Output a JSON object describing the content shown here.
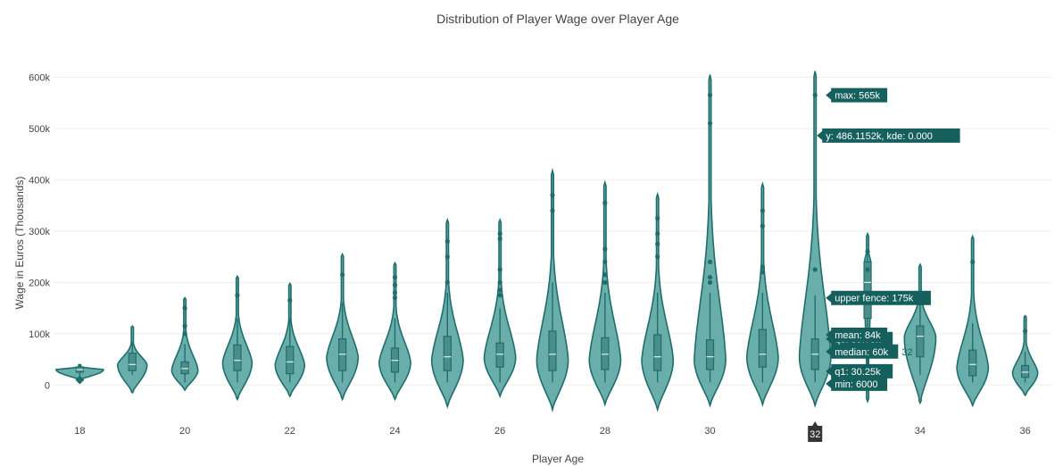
{
  "colors": {
    "violet_fill": "#6aaeab",
    "violet_line": "#1f6e6b",
    "box_fill": "#4a8d8a",
    "grid": "#eeeeee",
    "hover_bg": "#15605d",
    "spike_label_bg": "#333333"
  },
  "chart_data": {
    "type": "violin",
    "title": "Distribution of Player Wage over Player Age",
    "xlabel": "Player Age",
    "ylabel": "Wage in Euros (Thousands)",
    "ylim": [
      -50,
      620
    ],
    "xlim": [
      17.5,
      36.5
    ],
    "x_ticks": [
      18,
      20,
      22,
      24,
      26,
      28,
      30,
      32,
      34,
      36
    ],
    "y_ticks": [
      0,
      100,
      200,
      300,
      400,
      500,
      600
    ],
    "y_tick_labels": [
      "0",
      "100k",
      "200k",
      "300k",
      "400k",
      "500k",
      "600k"
    ],
    "grid": true,
    "legend": "none",
    "violins": [
      {
        "age": 18,
        "min": 10,
        "q1": 25,
        "median": 30,
        "q3": 35,
        "max": 40,
        "lo": 10,
        "hi": 40,
        "w": 0.45,
        "mode": 30,
        "outliers": []
      },
      {
        "age": 19,
        "min": 20,
        "q1": 28,
        "median": 40,
        "q3": 62,
        "max": 85,
        "lo": -15,
        "hi": 115,
        "w": 0.28,
        "mode": 40,
        "outliers": []
      },
      {
        "age": 20,
        "min": 5,
        "q1": 22,
        "median": 32,
        "q3": 45,
        "max": 80,
        "lo": -10,
        "hi": 170,
        "w": 0.25,
        "mode": 30,
        "outliers": [
          100,
          115,
          150
        ]
      },
      {
        "age": 21,
        "min": 5,
        "q1": 28,
        "median": 48,
        "q3": 78,
        "max": 130,
        "lo": -28,
        "hi": 212,
        "w": 0.28,
        "mode": 45,
        "outliers": [
          175
        ]
      },
      {
        "age": 22,
        "min": 5,
        "q1": 22,
        "median": 45,
        "q3": 75,
        "max": 130,
        "lo": -22,
        "hi": 198,
        "w": 0.28,
        "mode": 40,
        "outliers": [
          165
        ]
      },
      {
        "age": 23,
        "min": 5,
        "q1": 28,
        "median": 60,
        "q3": 90,
        "max": 160,
        "lo": -28,
        "hi": 255,
        "w": 0.3,
        "mode": 55,
        "outliers": [
          215
        ]
      },
      {
        "age": 24,
        "min": 5,
        "q1": 25,
        "median": 48,
        "q3": 72,
        "max": 130,
        "lo": -28,
        "hi": 238,
        "w": 0.3,
        "mode": 45,
        "outliers": [
          170,
          180,
          195,
          210
        ]
      },
      {
        "age": 25,
        "min": 5,
        "q1": 28,
        "median": 55,
        "q3": 95,
        "max": 180,
        "lo": -42,
        "hi": 322,
        "w": 0.3,
        "mode": 50,
        "outliers": [
          200,
          250,
          280
        ]
      },
      {
        "age": 26,
        "min": 5,
        "q1": 35,
        "median": 60,
        "q3": 82,
        "max": 150,
        "lo": -22,
        "hi": 322,
        "w": 0.3,
        "mode": 55,
        "outliers": [
          175,
          185,
          200,
          225,
          285,
          295
        ]
      },
      {
        "age": 27,
        "min": 5,
        "q1": 28,
        "median": 60,
        "q3": 105,
        "max": 200,
        "lo": -48,
        "hi": 418,
        "w": 0.3,
        "mode": 50,
        "outliers": [
          340,
          370
        ]
      },
      {
        "age": 28,
        "min": 5,
        "q1": 30,
        "median": 60,
        "q3": 92,
        "max": 180,
        "lo": -38,
        "hi": 395,
        "w": 0.3,
        "mode": 50,
        "outliers": [
          200,
          215,
          240,
          265,
          355
        ]
      },
      {
        "age": 29,
        "min": 5,
        "q1": 28,
        "median": 55,
        "q3": 98,
        "max": 180,
        "lo": -48,
        "hi": 372,
        "w": 0.3,
        "mode": 50,
        "outliers": [
          250,
          275,
          295,
          325
        ]
      },
      {
        "age": 30,
        "min": 5,
        "q1": 30,
        "median": 55,
        "q3": 88,
        "max": 180,
        "lo": -40,
        "hi": 605,
        "w": 0.3,
        "mode": 50,
        "outliers": [
          200,
          210,
          240,
          510,
          565
        ]
      },
      {
        "age": 31,
        "min": 5,
        "q1": 35,
        "median": 60,
        "q3": 108,
        "max": 180,
        "lo": -38,
        "hi": 392,
        "w": 0.3,
        "mode": 55,
        "outliers": [
          220,
          230,
          310,
          340
        ]
      },
      {
        "age": 32,
        "min": 6,
        "q1": 30.25,
        "median": 60,
        "q3": 89.75,
        "max": 175,
        "lo": -40,
        "hi": 612,
        "w": 0.3,
        "mode": 55,
        "mean": 84,
        "outliers": [
          225,
          565
        ]
      },
      {
        "age": 33,
        "min": 30,
        "q1": 130,
        "median": 200,
        "q3": 240,
        "max": 265,
        "lo": -32,
        "hi": 295,
        "w": 0.06,
        "mode": 240,
        "outliers": [
          225,
          260
        ]
      },
      {
        "age": 34,
        "min": 20,
        "q1": 55,
        "median": 95,
        "q3": 115,
        "max": 175,
        "lo": -35,
        "hi": 235,
        "w": 0.3,
        "mode": 95,
        "outliers": []
      },
      {
        "age": 35,
        "min": 5,
        "q1": 18,
        "median": 40,
        "q3": 68,
        "max": 120,
        "lo": -40,
        "hi": 290,
        "w": 0.3,
        "mode": 35,
        "outliers": [
          240
        ]
      },
      {
        "age": 36,
        "min": 5,
        "q1": 15,
        "median": 25,
        "q3": 38,
        "max": 65,
        "lo": -20,
        "hi": 135,
        "w": 0.24,
        "mode": 25,
        "outliers": [
          105
        ]
      }
    ],
    "hover": {
      "age": 32,
      "x_label": "32",
      "median_side_label": "32",
      "labels": [
        {
          "key": "max",
          "text": "max: 565k",
          "value": 565
        },
        {
          "key": "kde",
          "text": "y: 486.1152k, kde: 0.000",
          "value": 486.1152
        },
        {
          "key": "upper_fence",
          "text": "upper fence: 175k",
          "value": 175
        },
        {
          "key": "q3",
          "text": "q3: 89.75k",
          "value": 89.75
        },
        {
          "key": "mean",
          "text": "mean: 84k",
          "value": 84
        },
        {
          "key": "median",
          "text": "median: 60k",
          "value": 60
        },
        {
          "key": "q1",
          "text": "q1: 30.25k",
          "value": 30.25
        },
        {
          "key": "min",
          "text": "min: 6000",
          "value": 6
        }
      ]
    }
  }
}
